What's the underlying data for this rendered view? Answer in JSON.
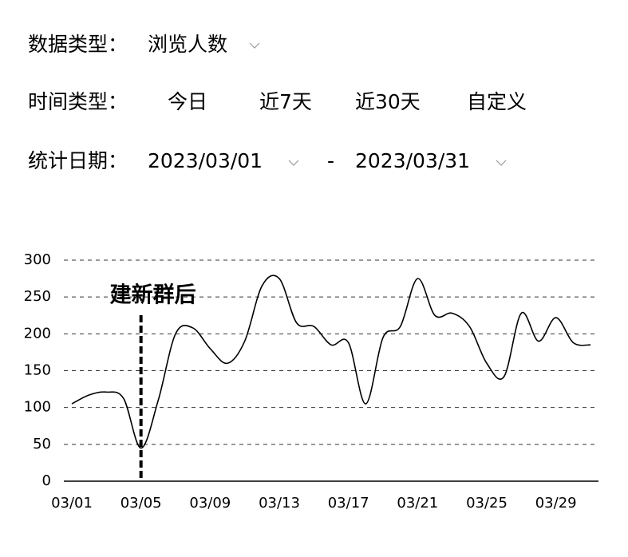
{
  "data_type": {
    "label": "数据类型：",
    "value": "浏览人数"
  },
  "time_type": {
    "label": "时间类型：",
    "options": [
      "今日",
      "近7天",
      "近30天",
      "自定义"
    ]
  },
  "date_range": {
    "label": "统计日期：",
    "start": "2023/03/01",
    "separator": "-",
    "end": "2023/03/31"
  },
  "chart_data": {
    "type": "line",
    "categories": [
      "03/01",
      null,
      null,
      null,
      "03/05",
      null,
      null,
      null,
      "03/09",
      null,
      null,
      null,
      "03/13",
      null,
      null,
      null,
      "03/17",
      null,
      null,
      null,
      "03/21",
      null,
      null,
      null,
      "03/25",
      null,
      null,
      null,
      "03/29",
      null,
      null
    ],
    "series": [
      {
        "color": "#000000",
        "values": [
          105,
          117,
          121,
          112,
          45,
          110,
          200,
          208,
          180,
          160,
          190,
          265,
          275,
          215,
          210,
          185,
          188,
          105,
          195,
          210,
          275,
          225,
          228,
          210,
          160,
          142,
          228,
          190,
          222,
          188,
          185
        ]
      }
    ],
    "ylim": [
      0,
      300
    ],
    "yticks": [
      0,
      50,
      100,
      150,
      200,
      250,
      300
    ],
    "grid": true,
    "annotation": {
      "text": "建新群后",
      "index": 4
    }
  }
}
